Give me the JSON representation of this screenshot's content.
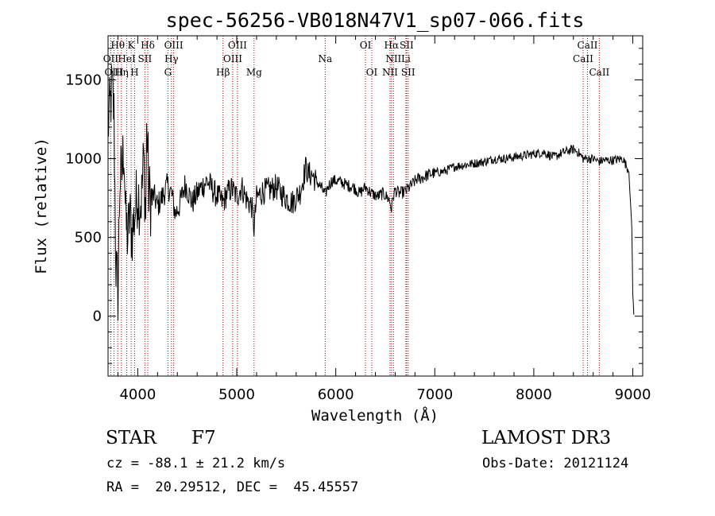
{
  "chart_data": {
    "type": "line",
    "title": "spec-56256-VB018N47V1_sp07-066.fits",
    "xlabel": "Wavelength (Å)",
    "ylabel": "Flux (relative)",
    "xlim": [
      3700,
      9100
    ],
    "ylim": [
      -380,
      1780
    ],
    "xticks": [
      4000,
      5000,
      6000,
      7000,
      8000,
      9000
    ],
    "yticks": [
      0,
      500,
      1000,
      1500
    ],
    "series": [
      {
        "name": "flux",
        "x": [
          3700,
          3720,
          3740,
          3760,
          3780,
          3800,
          3820,
          3840,
          3860,
          3880,
          3900,
          3920,
          3940,
          3960,
          3980,
          4000,
          4020,
          4040,
          4060,
          4080,
          4090,
          4101,
          4110,
          4130,
          4160,
          4200,
          4250,
          4300,
          4340,
          4380,
          4420,
          4480,
          4550,
          4620,
          4700,
          4780,
          4861,
          4900,
          4950,
          5000,
          5050,
          5100,
          5150,
          5175,
          5200,
          5260,
          5320,
          5400,
          5480,
          5560,
          5640,
          5700,
          5720,
          5760,
          5800,
          5850,
          5893,
          5920,
          5960,
          6000,
          6060,
          6120,
          6180,
          6240,
          6300,
          6360,
          6420,
          6480,
          6540,
          6563,
          6580,
          6600,
          6640,
          6700,
          6760,
          6820,
          6880,
          6940,
          7000,
          7100,
          7200,
          7300,
          7400,
          7500,
          7600,
          7700,
          7800,
          7900,
          8000,
          8100,
          8200,
          8300,
          8400,
          8450,
          8498,
          8542,
          8600,
          8662,
          8700,
          8800,
          8900,
          8960,
          8990,
          9000,
          9010
        ],
        "y": [
          1200,
          1320,
          1450,
          1280,
          320,
          150,
          880,
          900,
          1100,
          580,
          500,
          650,
          520,
          600,
          700,
          800,
          720,
          760,
          1000,
          640,
          1150,
          1120,
          800,
          730,
          770,
          700,
          760,
          830,
          780,
          650,
          700,
          840,
          720,
          800,
          860,
          780,
          720,
          780,
          810,
          760,
          820,
          740,
          700,
          560,
          750,
          790,
          800,
          820,
          760,
          720,
          790,
          950,
          900,
          900,
          860,
          820,
          770,
          820,
          860,
          860,
          850,
          830,
          820,
          780,
          820,
          780,
          760,
          780,
          740,
          680,
          760,
          800,
          780,
          790,
          830,
          870,
          880,
          900,
          910,
          920,
          950,
          960,
          970,
          980,
          1000,
          1000,
          1010,
          1020,
          1030,
          1040,
          1010,
          1040,
          1060,
          1040,
          1000,
          1000,
          1000,
          980,
          990,
          990,
          1000,
          920,
          560,
          150,
          10
        ]
      }
    ],
    "lines": [
      {
        "label": "Hθ",
        "wl": 3798,
        "row": 1
      },
      {
        "label": "OII",
        "wl": 3727,
        "row": 2
      },
      {
        "label": "OIII",
        "wl": 3760,
        "row": 3
      },
      {
        "label": "K",
        "wl": 3934,
        "row": 1
      },
      {
        "label": "HeI",
        "wl": 3889,
        "row": 2
      },
      {
        "label": "Hη",
        "wl": 3835,
        "row": 3
      },
      {
        "label": "SII",
        "wl": 4072,
        "row": 2
      },
      {
        "label": "H",
        "wl": 3968,
        "row": 3
      },
      {
        "label": "Hδ",
        "wl": 4101,
        "row": 1
      },
      {
        "label": "OIII",
        "wl": 4363,
        "row": 1
      },
      {
        "label": "Hγ",
        "wl": 4340,
        "row": 2
      },
      {
        "label": "G",
        "wl": 4305,
        "row": 3
      },
      {
        "label": "Hβ",
        "wl": 4861,
        "row": 3
      },
      {
        "label": "OIII",
        "wl": 5007,
        "row": 1
      },
      {
        "label": "OIII",
        "wl": 4959,
        "row": 2
      },
      {
        "label": "Mg",
        "wl": 5175,
        "row": 3
      },
      {
        "label": "Na",
        "wl": 5893,
        "row": 2
      },
      {
        "label": "OI",
        "wl": 6300,
        "row": 1
      },
      {
        "label": "OI",
        "wl": 6364,
        "row": 3
      },
      {
        "label": "Hα",
        "wl": 6563,
        "row": 1
      },
      {
        "label": "NII",
        "wl": 6583,
        "row": 2
      },
      {
        "label": "NII",
        "wl": 6548,
        "row": 3
      },
      {
        "label": "SII",
        "wl": 6716,
        "row": 1
      },
      {
        "label": "Li",
        "wl": 6708,
        "row": 2
      },
      {
        "label": "SII",
        "wl": 6731,
        "row": 3
      },
      {
        "label": "CaII",
        "wl": 8542,
        "row": 1
      },
      {
        "label": "CaII",
        "wl": 8498,
        "row": 2
      },
      {
        "label": "CaII",
        "wl": 8662,
        "row": 3
      }
    ],
    "grid": false,
    "legend": "none"
  },
  "info": {
    "object_class": "STAR",
    "subclass": "F7",
    "survey": "LAMOST DR3",
    "cz": "cz = -88.1 ± 21.2 km/s",
    "obs_date": "Obs-Date: 20121124",
    "coords": "RA =  20.29512, DEC =  45.45557"
  },
  "colors": {
    "line_marker": "#c00000",
    "spectrum": "#000000",
    "axes": "#000000"
  }
}
